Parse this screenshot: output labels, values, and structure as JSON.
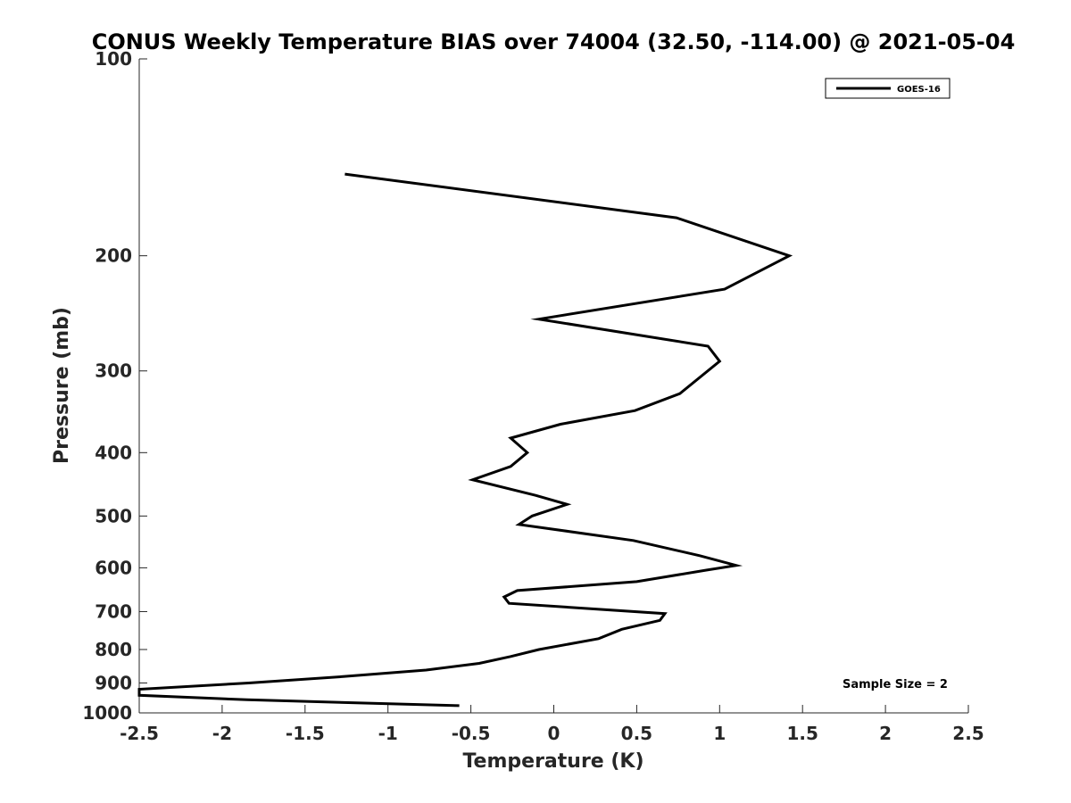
{
  "chart_data": {
    "type": "line",
    "title": "CONUS Weekly Temperature BIAS over 74004 (32.50, -114.00) @ 2021-05-04",
    "xlabel": "Temperature (K)",
    "ylabel": "Pressure (mb)",
    "xlim": [
      -2.5,
      2.5
    ],
    "ylim": [
      100,
      1000
    ],
    "y_scale": "log",
    "y_reversed": true,
    "grid": false,
    "legend_position": "top-right",
    "x_ticks": [
      "-2.5",
      "-2",
      "-1.5",
      "-1",
      "-0.5",
      "0",
      "0.5",
      "1",
      "1.5",
      "2",
      "2.5"
    ],
    "y_ticks": [
      "100",
      "200",
      "300",
      "400",
      "500",
      "600",
      "700",
      "800",
      "900",
      "1000"
    ],
    "annotation": "Sample Size = 2",
    "series": [
      {
        "name": "GOES-16",
        "color": "#000000",
        "points": [
          {
            "x": -1.26,
            "y": 150
          },
          {
            "x": 0.74,
            "y": 175
          },
          {
            "x": 1.42,
            "y": 200
          },
          {
            "x": 1.03,
            "y": 225
          },
          {
            "x": -0.09,
            "y": 250
          },
          {
            "x": 0.93,
            "y": 275
          },
          {
            "x": 1.0,
            "y": 290
          },
          {
            "x": 0.76,
            "y": 325
          },
          {
            "x": 0.49,
            "y": 345
          },
          {
            "x": 0.04,
            "y": 362
          },
          {
            "x": -0.26,
            "y": 380
          },
          {
            "x": -0.16,
            "y": 400
          },
          {
            "x": -0.26,
            "y": 420
          },
          {
            "x": -0.49,
            "y": 440
          },
          {
            "x": -0.11,
            "y": 465
          },
          {
            "x": 0.08,
            "y": 480
          },
          {
            "x": -0.13,
            "y": 500
          },
          {
            "x": -0.21,
            "y": 515
          },
          {
            "x": 0.48,
            "y": 545
          },
          {
            "x": 0.88,
            "y": 575
          },
          {
            "x": 1.1,
            "y": 595
          },
          {
            "x": 0.92,
            "y": 605
          },
          {
            "x": 0.5,
            "y": 630
          },
          {
            "x": -0.22,
            "y": 650
          },
          {
            "x": -0.3,
            "y": 665
          },
          {
            "x": -0.27,
            "y": 680
          },
          {
            "x": 0.67,
            "y": 705
          },
          {
            "x": 0.64,
            "y": 722
          },
          {
            "x": 0.41,
            "y": 745
          },
          {
            "x": 0.27,
            "y": 770
          },
          {
            "x": -0.09,
            "y": 800
          },
          {
            "x": -0.26,
            "y": 820
          },
          {
            "x": -0.45,
            "y": 840
          },
          {
            "x": -0.77,
            "y": 860
          },
          {
            "x": -1.27,
            "y": 880
          },
          {
            "x": -1.84,
            "y": 900
          },
          {
            "x": -2.5,
            "y": 920
          },
          {
            "x": -2.5,
            "y": 940
          },
          {
            "x": -1.85,
            "y": 955
          },
          {
            "x": -0.57,
            "y": 975
          }
        ]
      }
    ]
  }
}
